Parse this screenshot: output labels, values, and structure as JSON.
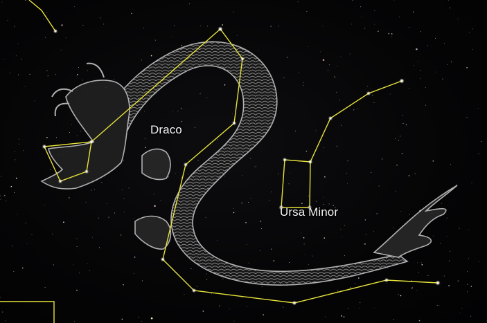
{
  "sky": {
    "labels": {
      "draco": "Draco",
      "ursa_minor": "Ursa Minor"
    },
    "colors": {
      "background": "#050505",
      "constellation_line": "#e8e43a",
      "star": "#ffffff",
      "figure_outline": "#c9c9c9"
    },
    "figures": [
      "dragon-illustration"
    ]
  }
}
